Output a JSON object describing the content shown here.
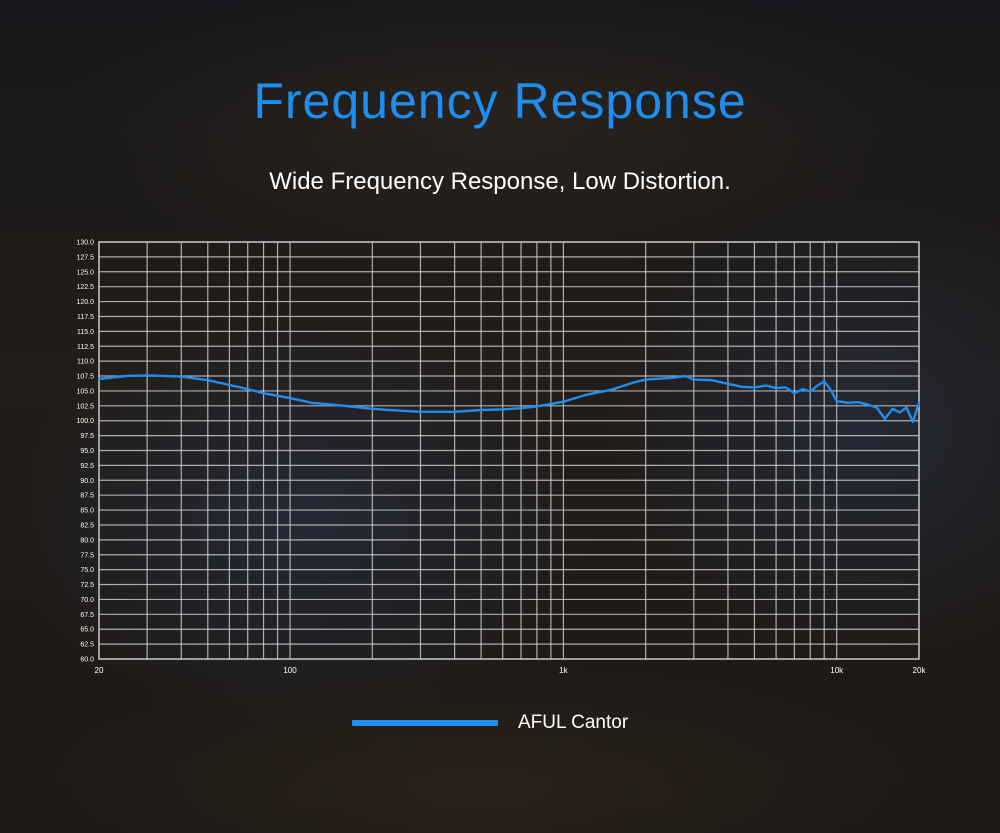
{
  "header": {
    "title": "Frequency Response",
    "subtitle": "Wide Frequency Response, Low Distortion."
  },
  "colors": {
    "accent": "#1e8ff0",
    "grid": "#c8c8c8",
    "text": "#ffffff"
  },
  "chart_data": {
    "type": "line",
    "title": "",
    "xlabel": "",
    "ylabel": "",
    "x_scale": "log",
    "xlim": [
      20,
      20000
    ],
    "ylim": [
      60,
      130
    ],
    "y_step": 2.5,
    "x_tick_labels": [
      {
        "value": 20,
        "label": "20"
      },
      {
        "value": 100,
        "label": "100"
      },
      {
        "value": 1000,
        "label": "1k"
      },
      {
        "value": 10000,
        "label": "10k"
      },
      {
        "value": 20000,
        "label": "20k"
      }
    ],
    "y_tick_labels": [
      "130.0",
      "127.5",
      "125.0",
      "122.5",
      "120.0",
      "117.5",
      "115.0",
      "112.5",
      "110.0",
      "107.5",
      "105.0",
      "102.5",
      "100.0",
      "97.5",
      "95.0",
      "92.5",
      "90.0",
      "87.5",
      "85.0",
      "82.5",
      "80.0",
      "77.5",
      "75.0",
      "72.5",
      "70.0",
      "67.5",
      "65.0",
      "62.5",
      "60.0"
    ],
    "grid": true,
    "legend": "bottom-center",
    "series": [
      {
        "name": "AFUL Cantor",
        "color": "#1e8ff0",
        "x": [
          20,
          25,
          30,
          40,
          50,
          60,
          70,
          80,
          100,
          120,
          150,
          200,
          250,
          300,
          400,
          500,
          600,
          700,
          800,
          1000,
          1200,
          1500,
          1800,
          2000,
          2500,
          2800,
          3000,
          3500,
          4000,
          4500,
          5000,
          5500,
          6000,
          6500,
          7000,
          7500,
          8000,
          8500,
          9000,
          9500,
          10000,
          11000,
          12000,
          13000,
          14000,
          15000,
          16000,
          17000,
          18000,
          19000,
          20000
        ],
        "y": [
          107.0,
          107.5,
          107.6,
          107.4,
          106.8,
          106.0,
          105.3,
          104.6,
          103.8,
          103.0,
          102.6,
          102.0,
          101.7,
          101.5,
          101.5,
          101.8,
          101.9,
          102.1,
          102.4,
          103.2,
          104.3,
          105.2,
          106.4,
          106.9,
          107.2,
          107.5,
          106.9,
          106.8,
          106.2,
          105.7,
          105.6,
          105.9,
          105.5,
          105.6,
          104.6,
          105.3,
          104.9,
          105.9,
          106.6,
          105.2,
          103.3,
          103.0,
          103.1,
          102.7,
          102.2,
          100.3,
          102.0,
          101.4,
          102.2,
          99.8,
          103.0
        ]
      }
    ]
  }
}
